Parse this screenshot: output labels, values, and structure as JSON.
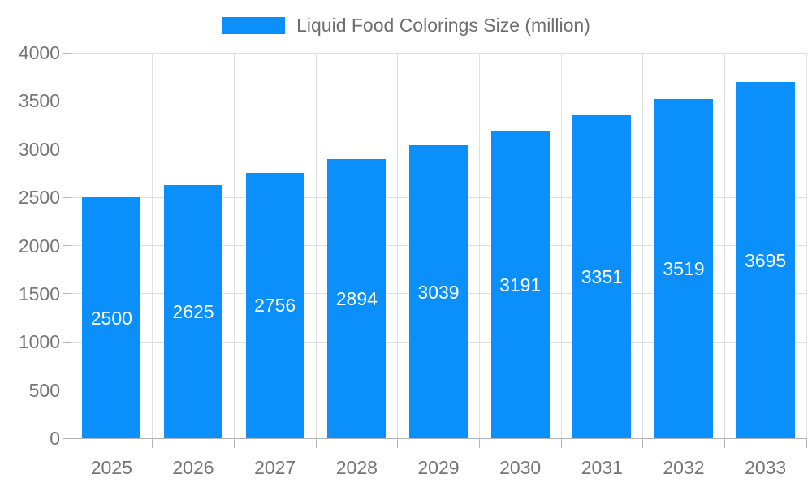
{
  "chart_data": {
    "type": "bar",
    "title": "Liquid Food Colorings Size (million)",
    "categories": [
      "2025",
      "2026",
      "2027",
      "2028",
      "2029",
      "2030",
      "2031",
      "2032",
      "2033"
    ],
    "values": [
      2500,
      2625,
      2756,
      2894,
      3039,
      3191,
      3351,
      3519,
      3695
    ],
    "series": [
      {
        "name": "Liquid Food Colorings Size (million)",
        "values": [
          2500,
          2625,
          2756,
          2894,
          3039,
          3191,
          3351,
          3519,
          3695
        ]
      }
    ],
    "xlabel": "",
    "ylabel": "",
    "ylim": [
      0,
      4000
    ],
    "yticks": [
      0,
      500,
      1000,
      1500,
      2000,
      2500,
      3000,
      3500,
      4000
    ],
    "grid": true,
    "legend_position": "top",
    "value_labels": "inside-center-white",
    "colors": {
      "bar": "#0A8FFB",
      "bar_label": "#ffffff",
      "axis_label": "#757575",
      "legend_text": "#6E6E6E",
      "gridline": "#e0e0e0",
      "axis_line": "#b3b3b3",
      "background": "#ffffff"
    }
  }
}
